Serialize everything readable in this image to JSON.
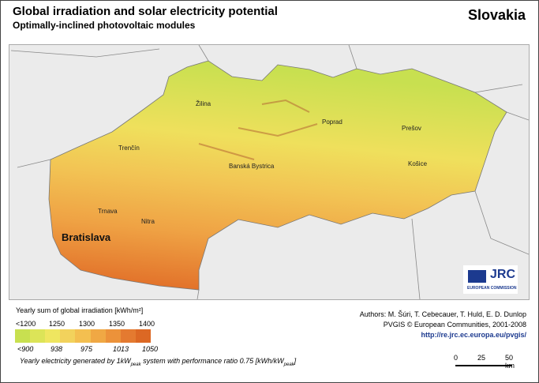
{
  "header": {
    "title": "Global irradiation and solar electricity potential",
    "subtitle": "Optimally-inclined photovoltaic modules",
    "country": "Slovakia"
  },
  "cities": [
    {
      "name": "Žilina"
    },
    {
      "name": "Poprad"
    },
    {
      "name": "Prešov"
    },
    {
      "name": "Trenčín"
    },
    {
      "name": "Košice"
    },
    {
      "name": "Banská Bystrica"
    },
    {
      "name": "Trnava"
    },
    {
      "name": "Nitra"
    },
    {
      "name": "Bratislava"
    }
  ],
  "logo": {
    "text": "JRC",
    "subtext": "EUROPEAN COMMISSION"
  },
  "legend": {
    "title": "Yearly sum of global irradiation [kWh/m²]",
    "irradiation_ticks": [
      "<1200",
      "1250",
      "1300",
      "1350",
      "1400"
    ],
    "electricity_ticks": [
      "<900",
      "938",
      "975",
      "1013",
      "1050"
    ],
    "colors": [
      "#c8e050",
      "#dce458",
      "#efe660",
      "#f2d25c",
      "#f3bf50",
      "#f0a844",
      "#ec923a",
      "#e47a30",
      "#dc6824"
    ],
    "note_a": "Yearly electricity generated by 1kW",
    "note_sub1": "peak",
    "note_b": " system with performance ratio 0.75 [kWh/kW",
    "note_sub2": "peak",
    "note_c": "]"
  },
  "credits": {
    "authors": "Authors: M. Šúri, T. Cebecauer, T. Huld, E. D. Dunlop",
    "pvgis": "PVGIS © European Communities, 2001-2008",
    "url": "http://re.jrc.ec.europa.eu/pvgis/"
  },
  "scale": {
    "labels": [
      "0",
      "25",
      "50 km"
    ]
  }
}
